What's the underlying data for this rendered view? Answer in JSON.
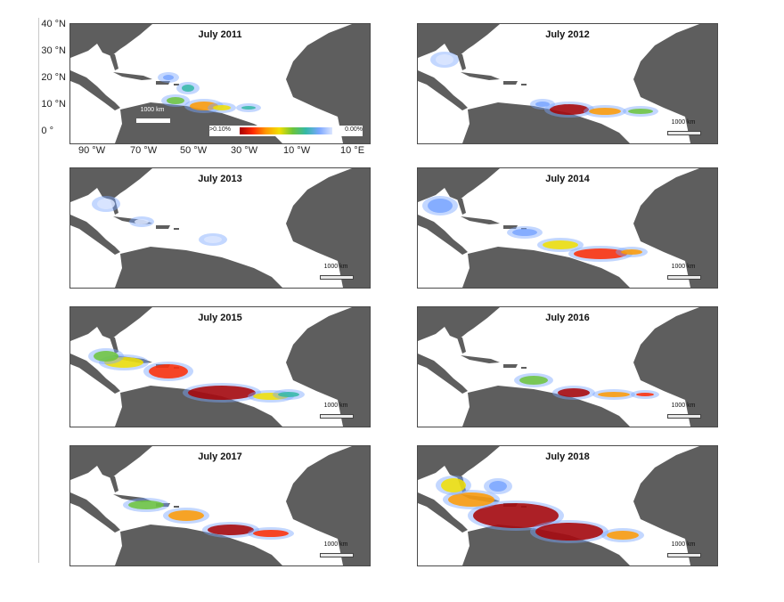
{
  "panels": [
    {
      "title": "July 2011",
      "scalebar": "1000 km"
    },
    {
      "title": "July 2012",
      "scalebar": "1000 km"
    },
    {
      "title": "July 2013",
      "scalebar": "1000 km"
    },
    {
      "title": "July 2014",
      "scalebar": "1000 km"
    },
    {
      "title": "July 2015",
      "scalebar": "1000 km"
    },
    {
      "title": "July 2016",
      "scalebar": "1000 km"
    },
    {
      "title": "July 2017",
      "scalebar": "1000 km"
    },
    {
      "title": "July 2018",
      "scalebar": "1000 km"
    }
  ],
  "axes": {
    "lat_ticks": [
      "40 °N",
      "30 °N",
      "20 °N",
      "10 °N",
      "0 °"
    ],
    "lon_ticks": [
      "90 °W",
      "70 °W",
      "50 °W",
      "30 °W",
      "10 °W",
      "10 °E"
    ]
  },
  "legend": {
    "high_label": ">0.10%",
    "low_label": "0.00%",
    "colors": [
      "#a80000",
      "#ff2a00",
      "#ff9a00",
      "#f2e000",
      "#6cc43a",
      "#34b8a6",
      "#7aa6ff",
      "#dce6ff"
    ]
  },
  "colors": {
    "land": "#5e5e5e",
    "ocean": "#ffffff",
    "border": "#4a4a4a"
  }
}
